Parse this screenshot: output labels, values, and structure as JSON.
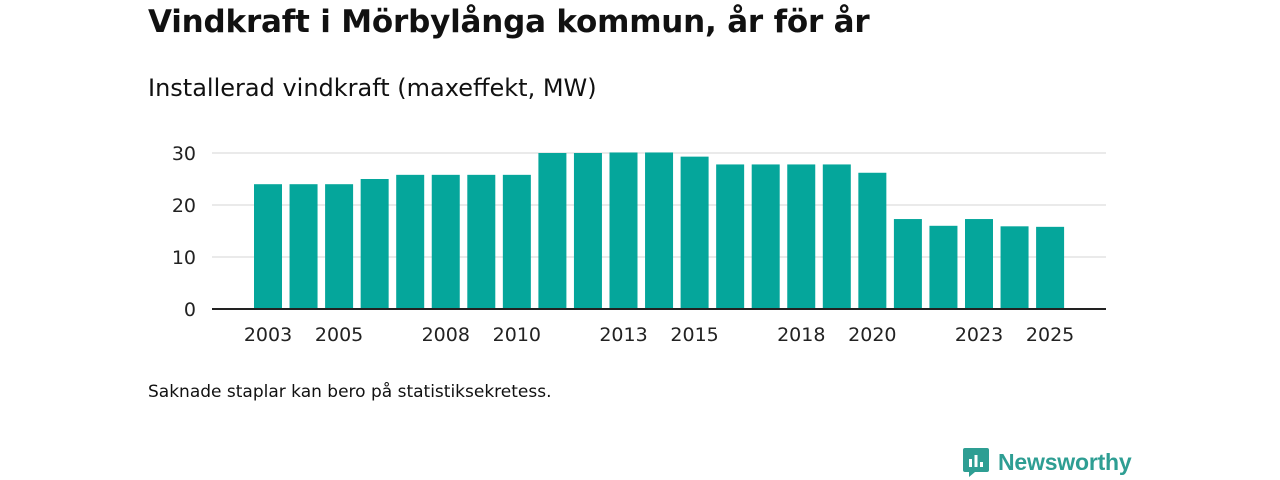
{
  "title": "Vindkraft i Mörbylånga kommun, år för år",
  "subtitle": "Installerad vindkraft (maxeffekt, MW)",
  "note": "Saknade staplar kan bero på statistiksekretess.",
  "brand": {
    "name": "Newsworthy",
    "icon": "newsworthy-logo-icon"
  },
  "colors": {
    "bar": "#05a69b",
    "grid": "#dddddd",
    "axis": "#222222",
    "brand": "#2e9e93"
  },
  "chart_data": {
    "type": "bar",
    "title": "Installerad vindkraft (maxeffekt, MW)",
    "xlabel": "",
    "ylabel": "",
    "categories": [
      "2003",
      "2004",
      "2005",
      "2006",
      "2007",
      "2008",
      "2009",
      "2010",
      "2011",
      "2012",
      "2013",
      "2014",
      "2015",
      "2016",
      "2017",
      "2018",
      "2019",
      "2020",
      "2021",
      "2022",
      "2023",
      "2024",
      "2025"
    ],
    "values": [
      24,
      24,
      24,
      25,
      25.8,
      25.8,
      25.8,
      25.8,
      30,
      30,
      30.1,
      30.1,
      29.3,
      27.8,
      27.8,
      27.8,
      27.8,
      26.2,
      17.3,
      16,
      17.3,
      15.9,
      15.8
    ],
    "xticks": [
      "2003",
      "2005",
      "2008",
      "2010",
      "2013",
      "2015",
      "2018",
      "2020",
      "2023",
      "2025"
    ],
    "yticks": [
      0,
      10,
      20,
      30
    ],
    "ylim": [
      0,
      30
    ],
    "grid": true,
    "legend": "none"
  }
}
